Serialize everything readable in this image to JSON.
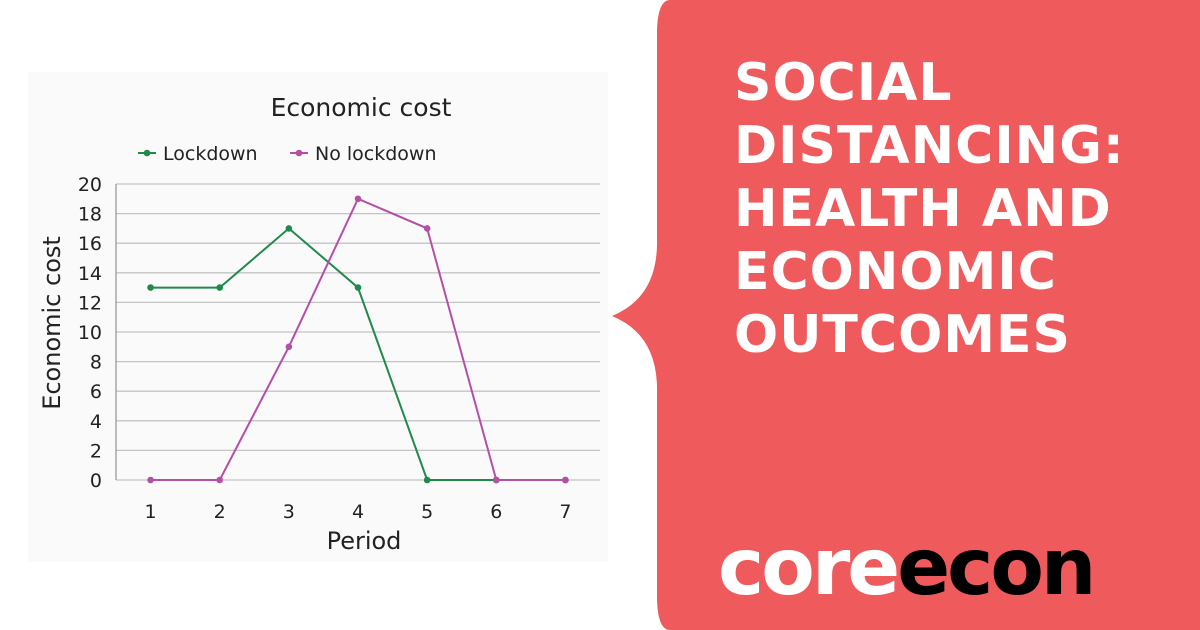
{
  "banner": {
    "headline_lines": [
      "SOCIAL",
      "DISTANCING:",
      "HEALTH AND",
      "ECONOMIC",
      "OUTCOMES"
    ],
    "brand_core": "core",
    "brand_econ": "econ",
    "color": "#ef5b5c"
  },
  "chart_data": {
    "type": "line",
    "title": "Economic cost",
    "xlabel": "Period",
    "ylabel": "Economic cost",
    "x": [
      1,
      2,
      3,
      4,
      5,
      6,
      7
    ],
    "xlim": [
      0.5,
      7.5
    ],
    "ylim": [
      0,
      20
    ],
    "yticks": [
      0,
      2,
      4,
      6,
      8,
      10,
      12,
      14,
      16,
      18,
      20
    ],
    "grid": true,
    "legend_position": "top",
    "series": [
      {
        "name": "Lockdown",
        "color": "#1f8a4c",
        "values": [
          13,
          13,
          17,
          13,
          0,
          0,
          0
        ]
      },
      {
        "name": "No lockdown",
        "color": "#b44fa8",
        "values": [
          0,
          0,
          9,
          19,
          17,
          0,
          0
        ]
      }
    ]
  }
}
